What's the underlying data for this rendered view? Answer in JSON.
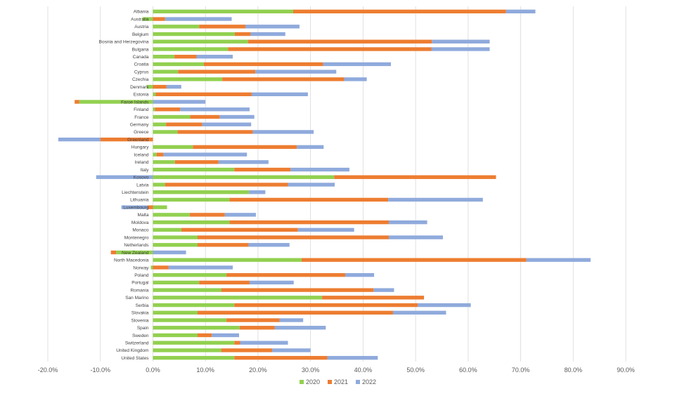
{
  "chart_data": {
    "type": "bar",
    "orientation": "horizontal",
    "stacked": true,
    "xlim": [
      -0.2,
      0.9
    ],
    "x_ticks": [
      "-20.0%",
      "-10.0%",
      "0.0%",
      "10.0%",
      "20.0%",
      "30.0%",
      "40.0%",
      "50.0%",
      "60.0%",
      "70.0%",
      "80.0%",
      "90.0%"
    ],
    "grid": "vertical",
    "legend_position": "bottom",
    "categories": [
      "Albania",
      "Australia",
      "Austria",
      "Belgium",
      "Bosnia and Herzegovina",
      "Bulgaria",
      "Canada",
      "Croatia",
      "Cyprus",
      "Czechia",
      "Denmark",
      "Estonia",
      "Faroe Islands",
      "Finland",
      "France",
      "Germany",
      "Greece",
      "Greenland",
      "Hungary",
      "Iceland",
      "Ireland",
      "Italy",
      "Kosovo",
      "Latvia",
      "Liechtenstein",
      "Lithuania",
      "Luxembourg",
      "Malta",
      "Moldova",
      "Monaco",
      "Montenegro",
      "Netherlands",
      "New Zealand",
      "North Macedonia",
      "Norway",
      "Poland",
      "Portugal",
      "Romania",
      "San Marino",
      "Serbia",
      "Slovakia",
      "Slovenia",
      "Spain",
      "Sweden",
      "Switzerland",
      "United Kingdom",
      "United States"
    ],
    "series": [
      {
        "name": "2020",
        "color": "#92d050",
        "values": [
          0.267,
          -0.02,
          0.088,
          0.156,
          0.181,
          0.143,
          0.041,
          0.097,
          0.048,
          0.132,
          -0.012,
          0.005,
          -0.14,
          0.004,
          0.071,
          0.025,
          0.047,
          0.0,
          0.076,
          0.007,
          0.042,
          0.155,
          0.345,
          0.023,
          0.183,
          0.146,
          0.027,
          0.07,
          0.146,
          0.054,
          0.085,
          0.085,
          -0.07,
          0.283,
          -0.004,
          0.14,
          0.088,
          0.13,
          0.322,
          0.155,
          0.085,
          0.14,
          0.165,
          0.085,
          0.155,
          0.13,
          0.155
        ]
      },
      {
        "name": "2021",
        "color": "#ed7d31",
        "values": [
          0.405,
          0.023,
          0.088,
          0.03,
          0.35,
          0.387,
          0.042,
          0.227,
          0.147,
          0.232,
          0.026,
          0.183,
          -0.009,
          0.048,
          0.056,
          0.069,
          0.143,
          -0.1,
          0.198,
          0.013,
          0.083,
          0.107,
          0.308,
          0.234,
          0.0,
          0.302,
          -0.01,
          0.067,
          0.303,
          0.222,
          0.364,
          0.097,
          -0.01,
          0.428,
          0.03,
          0.226,
          0.096,
          0.29,
          0.194,
          0.349,
          0.372,
          0.101,
          0.067,
          0.027,
          0.011,
          0.097,
          0.177
        ]
      },
      {
        "name": "2022",
        "color": "#8faadc",
        "values": [
          0.056,
          0.127,
          0.103,
          0.066,
          0.11,
          0.111,
          0.069,
          0.129,
          0.154,
          0.043,
          0.028,
          0.107,
          0.1,
          0.132,
          0.066,
          0.093,
          0.116,
          -0.08,
          0.051,
          0.159,
          0.095,
          0.112,
          -0.108,
          0.089,
          0.031,
          0.18,
          -0.05,
          0.059,
          0.073,
          0.107,
          0.103,
          0.078,
          0.063,
          0.122,
          0.122,
          0.055,
          0.084,
          0.039,
          0.0,
          0.101,
          0.101,
          0.045,
          0.097,
          0.052,
          0.091,
          0.073,
          0.096
        ]
      }
    ]
  }
}
